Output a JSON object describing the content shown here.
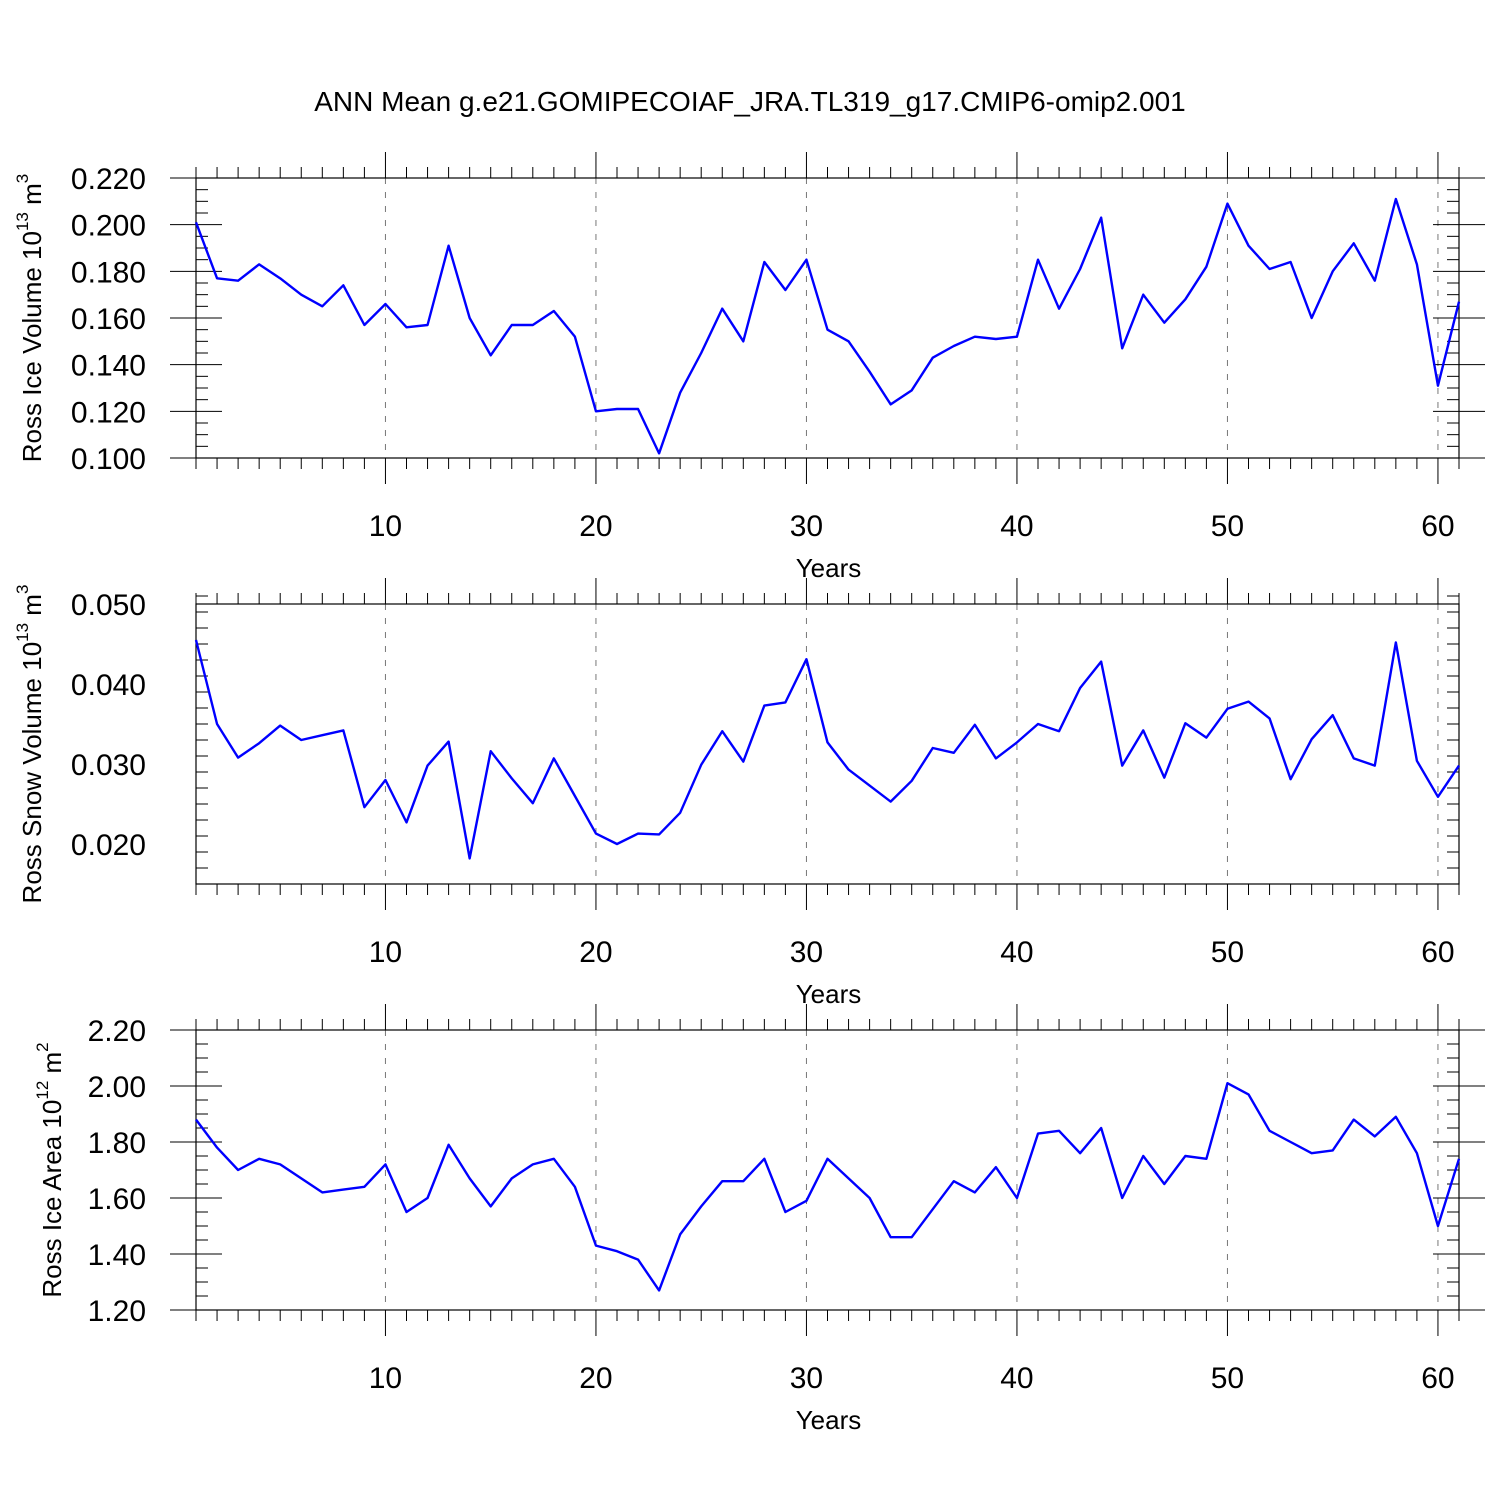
{
  "title": "ANN Mean g.e21.GOMIPECOIAF_JRA.TL319_g17.CMIP6-omip2.001",
  "line_color": "#0000ff",
  "chart_data": [
    {
      "type": "line",
      "ylabel_text": "Ross Ice Volume 10",
      "ylabel_exp": "13",
      "ylabel_unit": " m",
      "ylabel_unit_exp": "3",
      "xlabel": "Years",
      "xlim": [
        1,
        61
      ],
      "ylim": [
        0.1,
        0.22
      ],
      "x_ticks": [
        10,
        20,
        30,
        40,
        50,
        60
      ],
      "x_tick_labels": [
        "10",
        "20",
        "30",
        "40",
        "50",
        "60"
      ],
      "y_ticks": [
        0.1,
        0.12,
        0.14,
        0.16,
        0.18,
        0.2,
        0.22
      ],
      "y_tick_labels": [
        "0.100",
        "0.120",
        "0.140",
        "0.160",
        "0.180",
        "0.200",
        "0.220"
      ],
      "y_minor_step": 0.005,
      "grid": "vertical dashed at major x ticks",
      "series": [
        {
          "name": "Ross Ice Volume",
          "x": [
            1,
            2,
            3,
            4,
            5,
            6,
            7,
            8,
            9,
            10,
            11,
            12,
            13,
            14,
            15,
            16,
            17,
            18,
            19,
            20,
            21,
            22,
            23,
            24,
            25,
            26,
            27,
            28,
            29,
            30,
            31,
            32,
            33,
            34,
            35,
            36,
            37,
            38,
            39,
            40,
            41,
            42,
            43,
            44,
            45,
            46,
            47,
            48,
            49,
            50,
            51,
            52,
            53,
            54,
            55,
            56,
            57,
            58,
            59,
            60,
            61
          ],
          "values": [
            0.201,
            0.177,
            0.176,
            0.183,
            0.177,
            0.17,
            0.165,
            0.174,
            0.157,
            0.166,
            0.156,
            0.157,
            0.191,
            0.16,
            0.144,
            0.157,
            0.157,
            0.163,
            0.152,
            0.12,
            0.121,
            0.121,
            0.102,
            0.128,
            0.145,
            0.164,
            0.15,
            0.184,
            0.172,
            0.185,
            0.155,
            0.15,
            0.137,
            0.123,
            0.129,
            0.143,
            0.148,
            0.152,
            0.151,
            0.152,
            0.185,
            0.164,
            0.181,
            0.203,
            0.147,
            0.17,
            0.158,
            0.168,
            0.182,
            0.209,
            0.191,
            0.181,
            0.184,
            0.16,
            0.18,
            0.192,
            0.176,
            0.211,
            0.183,
            0.131,
            0.167
          ]
        }
      ]
    },
    {
      "type": "line",
      "ylabel_text": "Ross Snow Volume 10",
      "ylabel_exp": "13",
      "ylabel_unit": " m",
      "ylabel_unit_exp": "3",
      "xlabel": "Years",
      "xlim": [
        1,
        61
      ],
      "ylim": [
        0.015,
        0.05
      ],
      "x_ticks": [
        10,
        20,
        30,
        40,
        50,
        60
      ],
      "x_tick_labels": [
        "10",
        "20",
        "30",
        "40",
        "50",
        "60"
      ],
      "y_ticks": [
        0.02,
        0.03,
        0.04,
        0.05
      ],
      "y_tick_labels": [
        "0.020",
        "0.030",
        "0.040",
        "0.050"
      ],
      "y_minor_step": 0.002,
      "grid": "vertical dashed at major x ticks",
      "series": [
        {
          "name": "Ross Snow Volume",
          "x": [
            1,
            2,
            3,
            4,
            5,
            6,
            7,
            8,
            9,
            10,
            11,
            12,
            13,
            14,
            15,
            16,
            17,
            18,
            19,
            20,
            21,
            22,
            23,
            24,
            25,
            26,
            27,
            28,
            29,
            30,
            31,
            32,
            33,
            34,
            35,
            36,
            37,
            38,
            39,
            40,
            41,
            42,
            43,
            44,
            45,
            46,
            47,
            48,
            49,
            50,
            51,
            52,
            53,
            54,
            55,
            56,
            57,
            58,
            59,
            60,
            61
          ],
          "values": [
            0.0455,
            0.035,
            0.0308,
            0.0326,
            0.0348,
            0.033,
            0.0336,
            0.0342,
            0.0246,
            0.028,
            0.0227,
            0.0298,
            0.0328,
            0.0182,
            0.0316,
            0.0282,
            0.0251,
            0.0307,
            0.026,
            0.0213,
            0.02,
            0.0213,
            0.0212,
            0.0239,
            0.0299,
            0.0341,
            0.0303,
            0.0373,
            0.0377,
            0.0431,
            0.0327,
            0.0293,
            0.0273,
            0.0253,
            0.0279,
            0.032,
            0.0314,
            0.0349,
            0.0307,
            0.0327,
            0.035,
            0.0341,
            0.0395,
            0.0428,
            0.0298,
            0.0342,
            0.0283,
            0.0351,
            0.0333,
            0.0369,
            0.0378,
            0.0357,
            0.0281,
            0.0331,
            0.0361,
            0.0307,
            0.0298,
            0.0452,
            0.0304,
            0.0259,
            0.0298
          ]
        }
      ]
    },
    {
      "type": "line",
      "ylabel_text": "Ross Ice Area 10",
      "ylabel_exp": "12",
      "ylabel_unit": " m",
      "ylabel_unit_exp": "2",
      "xlabel": "Years",
      "xlim": [
        1,
        61
      ],
      "ylim": [
        1.2,
        2.2
      ],
      "x_ticks": [
        10,
        20,
        30,
        40,
        50,
        60
      ],
      "x_tick_labels": [
        "10",
        "20",
        "30",
        "40",
        "50",
        "60"
      ],
      "y_ticks": [
        1.2,
        1.4,
        1.6,
        1.8,
        2.0,
        2.2
      ],
      "y_tick_labels": [
        "1.20",
        "1.40",
        "1.60",
        "1.80",
        "2.00",
        "2.20"
      ],
      "y_minor_step": 0.05,
      "grid": "vertical dashed at major x ticks",
      "series": [
        {
          "name": "Ross Ice Area",
          "x": [
            1,
            2,
            3,
            4,
            5,
            6,
            7,
            8,
            9,
            10,
            11,
            12,
            13,
            14,
            15,
            16,
            17,
            18,
            19,
            20,
            21,
            22,
            23,
            24,
            25,
            26,
            27,
            28,
            29,
            30,
            31,
            32,
            33,
            34,
            35,
            36,
            37,
            38,
            39,
            40,
            41,
            42,
            43,
            44,
            45,
            46,
            47,
            48,
            49,
            50,
            51,
            52,
            53,
            54,
            55,
            56,
            57,
            58,
            59,
            60,
            61
          ],
          "values": [
            1.88,
            1.78,
            1.7,
            1.74,
            1.72,
            1.67,
            1.62,
            1.63,
            1.64,
            1.72,
            1.55,
            1.6,
            1.79,
            1.67,
            1.57,
            1.67,
            1.72,
            1.74,
            1.64,
            1.43,
            1.41,
            1.38,
            1.27,
            1.47,
            1.57,
            1.66,
            1.66,
            1.74,
            1.55,
            1.59,
            1.74,
            1.67,
            1.6,
            1.46,
            1.46,
            1.56,
            1.66,
            1.62,
            1.71,
            1.6,
            1.83,
            1.84,
            1.76,
            1.85,
            1.6,
            1.75,
            1.65,
            1.75,
            1.74,
            2.01,
            1.97,
            1.84,
            1.8,
            1.76,
            1.77,
            1.88,
            1.82,
            1.89,
            1.76,
            1.5,
            1.74
          ]
        }
      ]
    }
  ]
}
